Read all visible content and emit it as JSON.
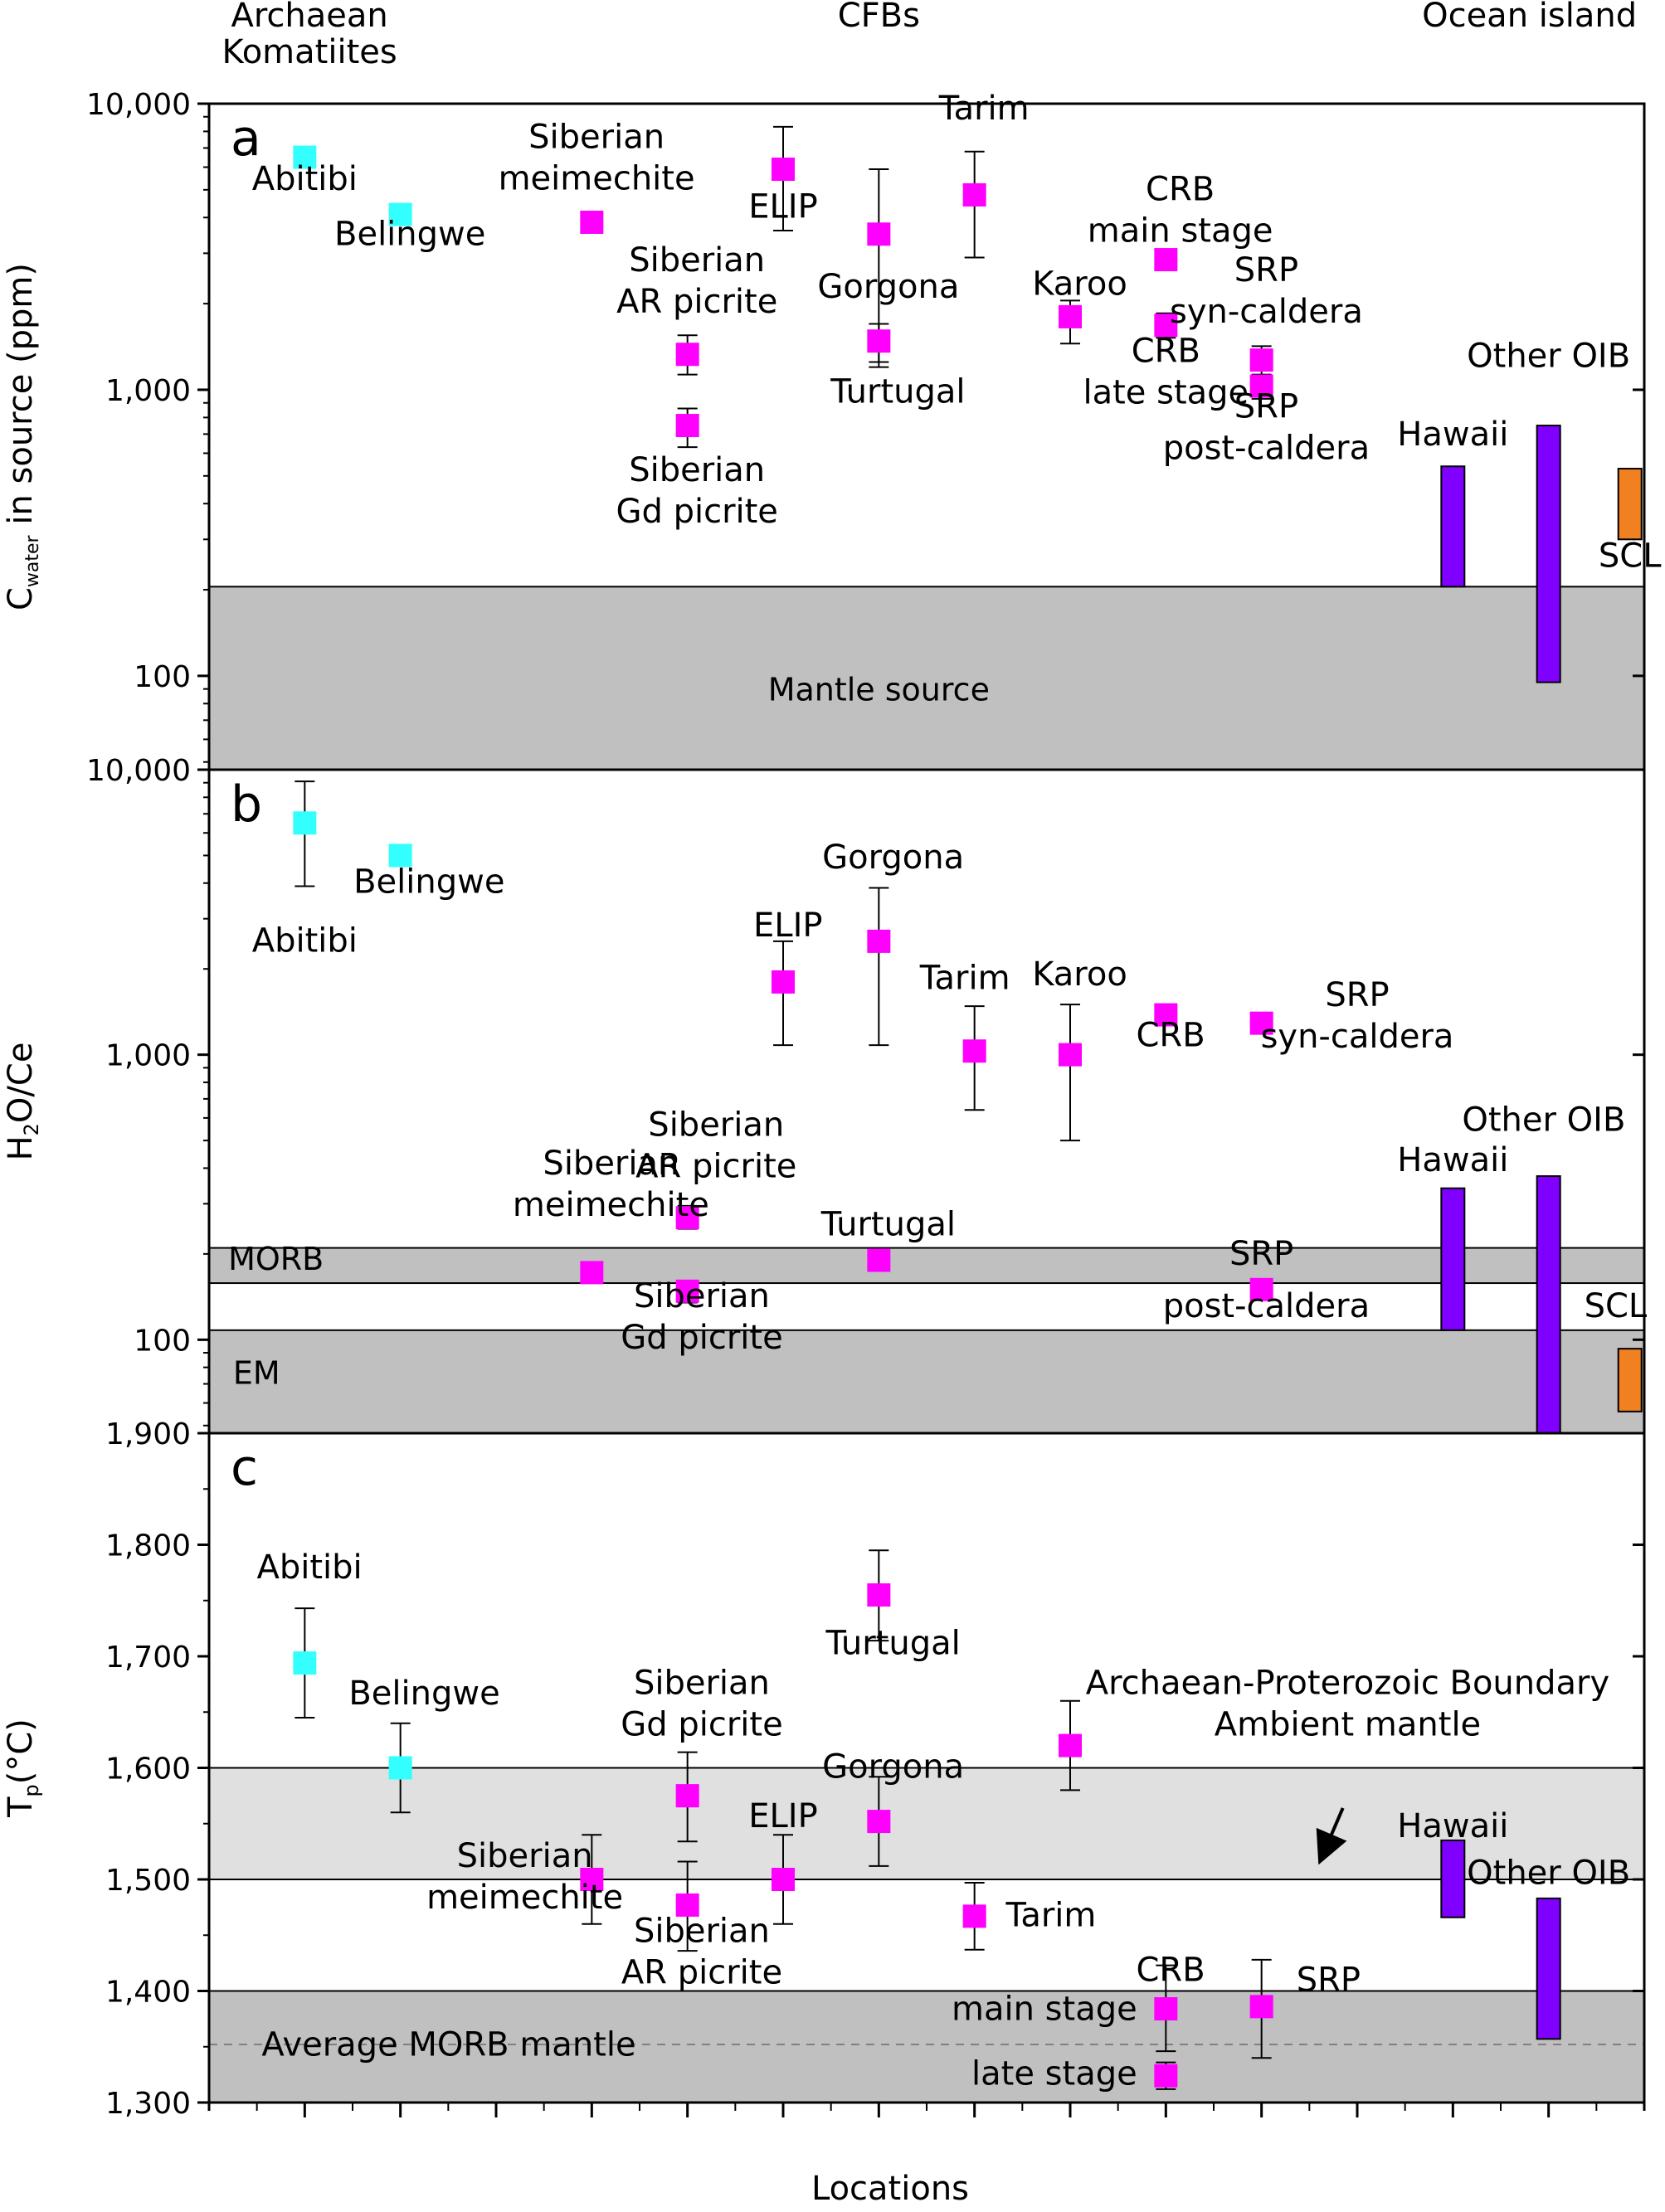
{
  "header": {
    "groups": [
      {
        "text": "Archaean\nKomatiites",
        "x": 1.05
      },
      {
        "text": "CFBs",
        "x": 7.0
      },
      {
        "text": "Ocean island",
        "x": 13.8
      }
    ]
  },
  "xlabel": "Locations",
  "colors": {
    "komatiite": "#33ffff",
    "cfb": "#ff00ff",
    "oib": "#7f00ff",
    "scl": "#f08020",
    "zone_dark": "#c0c0c0",
    "zone_light": "#e0e0e0"
  },
  "chart_data": [
    {
      "panel": "a",
      "type": "scatter",
      "scale": "log",
      "ylim": [
        47,
        10000
      ],
      "ylabel": "C_water in source (ppm)",
      "yticks": [
        {
          "v": 10000,
          "t": "10,000"
        },
        {
          "v": 1000,
          "t": "1,000"
        },
        {
          "v": 100,
          "t": "100"
        }
      ],
      "zones": [
        {
          "y0": 47,
          "y1": 205,
          "color": "zone_dark",
          "label": "Mantle source",
          "lx": 7.0,
          "ly": 82,
          "anchor": "middle"
        }
      ],
      "bars": [
        {
          "x": 13.0,
          "y0": 205,
          "y1": 540,
          "color": "oib"
        },
        {
          "x": 14.0,
          "y0": 95,
          "y1": 750,
          "color": "oib"
        },
        {
          "x": 14.85,
          "y0": 300,
          "y1": 530,
          "color": "scl"
        }
      ],
      "points": [
        {
          "x": 1,
          "y": 6500,
          "lo": 6000,
          "hi": 7000,
          "c": "komatiite"
        },
        {
          "x": 2,
          "y": 4100,
          "lo": 3800,
          "hi": 4400,
          "c": "komatiite"
        },
        {
          "x": 4,
          "y": 3850,
          "lo": 3600,
          "hi": 4050,
          "c": "cfb"
        },
        {
          "x": 5,
          "y": 1330,
          "lo": 1130,
          "hi": 1550,
          "c": "cfb"
        },
        {
          "x": 5,
          "y": 750,
          "lo": 630,
          "hi": 860,
          "c": "cfb"
        },
        {
          "x": 6,
          "y": 5900,
          "lo": 3600,
          "hi": 8300,
          "c": "cfb"
        },
        {
          "x": 7,
          "y": 3500,
          "lo": 1200,
          "hi": 5900,
          "c": "cfb"
        },
        {
          "x": 7,
          "y": 1480,
          "lo": 1250,
          "hi": 1700,
          "c": "cfb"
        },
        {
          "x": 8,
          "y": 4800,
          "lo": 2900,
          "hi": 6800,
          "c": "cfb"
        },
        {
          "x": 9,
          "y": 1800,
          "lo": 1450,
          "hi": 2050,
          "c": "cfb"
        },
        {
          "x": 10,
          "y": 2850,
          "lo": 2650,
          "hi": 3050,
          "c": "cfb"
        },
        {
          "x": 10,
          "y": 1680,
          "lo": 1520,
          "hi": 1850,
          "c": "cfb"
        },
        {
          "x": 11,
          "y": 1270,
          "lo": 1120,
          "hi": 1420,
          "c": "cfb"
        },
        {
          "x": 11,
          "y": 1030,
          "lo": 930,
          "hi": 1130,
          "c": "cfb"
        }
      ],
      "labels": [
        {
          "t": "Abitibi",
          "x": 1.0,
          "y": 5000,
          "a": "middle"
        },
        {
          "t": "Belingwe",
          "x": 2.1,
          "y": 3200,
          "a": "middle"
        },
        {
          "t": "Siberian\nmeimechite",
          "x": 4.05,
          "y": 7000,
          "a": "middle"
        },
        {
          "t": "ELIP",
          "x": 6.0,
          "y": 4000,
          "a": "middle"
        },
        {
          "t": "Tarim",
          "x": 8.1,
          "y": 8800,
          "a": "middle"
        },
        {
          "t": "Gorgona",
          "x": 7.1,
          "y": 2100,
          "a": "middle"
        },
        {
          "t": "Siberian\nAR picrite",
          "x": 5.1,
          "y": 2600,
          "a": "middle"
        },
        {
          "t": "Karoo",
          "x": 9.1,
          "y": 2150,
          "a": "middle"
        },
        {
          "t": "CRB\nmain stage",
          "x": 10.15,
          "y": 4600,
          "a": "middle"
        },
        {
          "t": "SRP\nsyn-caldera",
          "x": 11.05,
          "y": 2400,
          "a": "middle"
        },
        {
          "t": "CRB\nlate stage",
          "x": 10.0,
          "y": 1250,
          "a": "middle"
        },
        {
          "t": "Turtugal",
          "x": 7.2,
          "y": 900,
          "a": "middle"
        },
        {
          "t": "Other OIB",
          "x": 14.0,
          "y": 1200,
          "a": "middle"
        },
        {
          "t": "SRP\npost-caldera",
          "x": 11.05,
          "y": 800,
          "a": "middle"
        },
        {
          "t": "Hawaii",
          "x": 13.0,
          "y": 640,
          "a": "middle"
        },
        {
          "t": "Siberian\nGd picrite",
          "x": 5.1,
          "y": 480,
          "a": "middle"
        },
        {
          "t": "SCL",
          "x": 14.85,
          "y": 240,
          "a": "middle"
        }
      ]
    },
    {
      "panel": "b",
      "type": "scatter",
      "scale": "log",
      "ylim": [
        47,
        10000
      ],
      "ylabel": "H2O/Ce",
      "yticks": [
        {
          "v": 10000,
          "t": "10,000"
        },
        {
          "v": 1000,
          "t": "1,000"
        },
        {
          "v": 100,
          "t": "100"
        }
      ],
      "zones": [
        {
          "y0": 47,
          "y1": 108,
          "color": "zone_dark",
          "label": "EM",
          "lx": 0.25,
          "ly": 70,
          "anchor": "start"
        },
        {
          "y0": 158,
          "y1": 210,
          "color": "zone_dark",
          "label": "MORB",
          "lx": 0.2,
          "ly": 176,
          "anchor": "start"
        }
      ],
      "bars": [
        {
          "x": 13.0,
          "y0": 108,
          "y1": 340,
          "color": "oib"
        },
        {
          "x": 14.0,
          "y0": 47,
          "y1": 375,
          "color": "oib"
        },
        {
          "x": 14.85,
          "y0": 56,
          "y1": 93,
          "color": "scl"
        }
      ],
      "points": [
        {
          "x": 1,
          "y": 6500,
          "lo": 3900,
          "hi": 9100,
          "c": "komatiite"
        },
        {
          "x": 2,
          "y": 5000,
          "lo": 4700,
          "hi": 5300,
          "c": "komatiite"
        },
        {
          "x": 4,
          "y": 172,
          "lo": 160,
          "hi": 185,
          "c": "cfb"
        },
        {
          "x": 5,
          "y": 268,
          "lo": 245,
          "hi": 295,
          "c": "cfb"
        },
        {
          "x": 5,
          "y": 148,
          "lo": 135,
          "hi": 160,
          "c": "cfb"
        },
        {
          "x": 6,
          "y": 1800,
          "lo": 1080,
          "hi": 2500,
          "c": "cfb"
        },
        {
          "x": 7,
          "y": 2500,
          "lo": 1080,
          "hi": 3850,
          "c": "cfb"
        },
        {
          "x": 7,
          "y": 190,
          "lo": 175,
          "hi": 205,
          "c": "cfb"
        },
        {
          "x": 8,
          "y": 1030,
          "lo": 640,
          "hi": 1480,
          "c": "cfb"
        },
        {
          "x": 9,
          "y": 1000,
          "lo": 500,
          "hi": 1500,
          "c": "cfb"
        },
        {
          "x": 10,
          "y": 1380,
          "lo": 1280,
          "hi": 1480,
          "c": "cfb"
        },
        {
          "x": 11,
          "y": 1290,
          "lo": 1190,
          "hi": 1390,
          "c": "cfb"
        },
        {
          "x": 11,
          "y": 150,
          "lo": 140,
          "hi": 162,
          "c": "cfb"
        }
      ],
      "labels": [
        {
          "t": "Belingwe",
          "x": 2.3,
          "y": 3700,
          "a": "middle"
        },
        {
          "t": "Abitibi",
          "x": 1.0,
          "y": 2300,
          "a": "middle"
        },
        {
          "t": "Gorgona",
          "x": 7.15,
          "y": 4500,
          "a": "middle"
        },
        {
          "t": "ELIP",
          "x": 6.05,
          "y": 2600,
          "a": "middle"
        },
        {
          "t": "Tarim",
          "x": 7.9,
          "y": 1700,
          "a": "middle"
        },
        {
          "t": "Karoo",
          "x": 9.1,
          "y": 1750,
          "a": "middle"
        },
        {
          "t": "SRP\nsyn-caldera",
          "x": 12.0,
          "y": 1480,
          "a": "middle"
        },
        {
          "t": "CRB",
          "x": 10.05,
          "y": 1070,
          "a": "middle"
        },
        {
          "t": "Other OIB",
          "x": 13.95,
          "y": 540,
          "a": "middle"
        },
        {
          "t": "Siberian\nAR picrite",
          "x": 5.3,
          "y": 520,
          "a": "middle"
        },
        {
          "t": "Hawaii",
          "x": 13.0,
          "y": 390,
          "a": "middle"
        },
        {
          "t": "Siberian\nmeimechite",
          "x": 4.2,
          "y": 380,
          "a": "middle"
        },
        {
          "t": "Turtugal",
          "x": 7.1,
          "y": 232,
          "a": "middle"
        },
        {
          "t": "SRP",
          "x": 11.0,
          "y": 183,
          "a": "middle"
        },
        {
          "t": "Siberian\nGd picrite",
          "x": 5.15,
          "y": 130,
          "a": "middle"
        },
        {
          "t": "post-caldera",
          "x": 11.05,
          "y": 120,
          "a": "middle"
        },
        {
          "t": "SCL",
          "x": 14.7,
          "y": 120,
          "a": "middle"
        }
      ]
    },
    {
      "panel": "c",
      "type": "scatter",
      "scale": "linear",
      "ylim": [
        1300,
        1900
      ],
      "ylabel": "Tp(°C)",
      "yticks": [
        {
          "v": 1900,
          "t": "1,900"
        },
        {
          "v": 1800,
          "t": "1,800"
        },
        {
          "v": 1700,
          "t": "1,700"
        },
        {
          "v": 1600,
          "t": "1,600"
        },
        {
          "v": 1500,
          "t": "1,500"
        },
        {
          "v": 1400,
          "t": "1,400"
        },
        {
          "v": 1300,
          "t": "1,300"
        }
      ],
      "zones": [
        {
          "y0": 1300,
          "y1": 1400,
          "color": "zone_dark",
          "label": "",
          "lx": 0,
          "ly": 0,
          "anchor": "start"
        },
        {
          "y0": 1500,
          "y1": 1600,
          "color": "zone_light",
          "label": "",
          "lx": 0,
          "ly": 0,
          "anchor": "start"
        }
      ],
      "dashed": {
        "y": 1352,
        "label": "Average MORB mantle",
        "lx": 0.55,
        "ly": 1342
      },
      "bars": [
        {
          "x": 13.0,
          "y0": 1466,
          "y1": 1535,
          "color": "oib"
        },
        {
          "x": 14.0,
          "y0": 1357,
          "y1": 1483,
          "color": "oib"
        }
      ],
      "points": [
        {
          "x": 1,
          "y": 1694,
          "lo": 1645,
          "hi": 1743,
          "c": "komatiite"
        },
        {
          "x": 2,
          "y": 1600,
          "lo": 1560,
          "hi": 1640,
          "c": "komatiite"
        },
        {
          "x": 4,
          "y": 1500,
          "lo": 1460,
          "hi": 1540,
          "c": "cfb"
        },
        {
          "x": 5,
          "y": 1575,
          "lo": 1534,
          "hi": 1614,
          "c": "cfb"
        },
        {
          "x": 5,
          "y": 1477,
          "lo": 1436,
          "hi": 1516,
          "c": "cfb"
        },
        {
          "x": 6,
          "y": 1500,
          "lo": 1460,
          "hi": 1540,
          "c": "cfb"
        },
        {
          "x": 7,
          "y": 1755,
          "lo": 1714,
          "hi": 1795,
          "c": "cfb"
        },
        {
          "x": 7,
          "y": 1552,
          "lo": 1512,
          "hi": 1592,
          "c": "cfb"
        },
        {
          "x": 8,
          "y": 1467,
          "lo": 1437,
          "hi": 1497,
          "c": "cfb"
        },
        {
          "x": 9,
          "y": 1620,
          "lo": 1580,
          "hi": 1660,
          "c": "cfb"
        },
        {
          "x": 10,
          "y": 1384,
          "lo": 1346,
          "hi": 1423,
          "c": "cfb"
        },
        {
          "x": 10,
          "y": 1324,
          "lo": 1312,
          "hi": 1336,
          "c": "cfb"
        },
        {
          "x": 11,
          "y": 1386,
          "lo": 1340,
          "hi": 1428,
          "c": "cfb"
        }
      ],
      "labels": [
        {
          "t": "Abitibi",
          "x": 1.05,
          "y": 1770,
          "a": "middle"
        },
        {
          "t": "Belingwe",
          "x": 2.25,
          "y": 1657,
          "a": "middle"
        },
        {
          "t": "Turtugal",
          "x": 7.15,
          "y": 1702,
          "a": "middle"
        },
        {
          "t": "Siberian\nGd picrite",
          "x": 5.15,
          "y": 1666,
          "a": "middle"
        },
        {
          "t": "Archaean-Proterozoic Boundary\nAmbient mantle",
          "x": 11.9,
          "y": 1666,
          "a": "middle"
        },
        {
          "t": "Gorgona",
          "x": 7.15,
          "y": 1591,
          "a": "middle"
        },
        {
          "t": "ELIP",
          "x": 6.0,
          "y": 1547,
          "a": "middle"
        },
        {
          "t": "Hawaii",
          "x": 13.0,
          "y": 1538,
          "a": "middle"
        },
        {
          "t": "Other OIB",
          "x": 14.0,
          "y": 1496,
          "a": "middle"
        },
        {
          "t": "Siberian\nmeimechite",
          "x": 3.3,
          "y": 1511,
          "a": "middle"
        },
        {
          "t": "Tarim",
          "x": 8.8,
          "y": 1458,
          "a": "middle"
        },
        {
          "t": "Siberian\nAR picrite",
          "x": 5.15,
          "y": 1444,
          "a": "middle"
        },
        {
          "t": "CRB",
          "x": 10.05,
          "y": 1409,
          "a": "middle"
        },
        {
          "t": "SRP",
          "x": 11.7,
          "y": 1400,
          "a": "middle"
        },
        {
          "t": "main stage",
          "x": 9.7,
          "y": 1374,
          "a": "end"
        },
        {
          "t": "late stage",
          "x": 9.7,
          "y": 1316,
          "a": "end"
        }
      ],
      "arrow": {
        "from": [
          11.85,
          1564
        ],
        "to": [
          11.65,
          1524
        ]
      }
    }
  ]
}
